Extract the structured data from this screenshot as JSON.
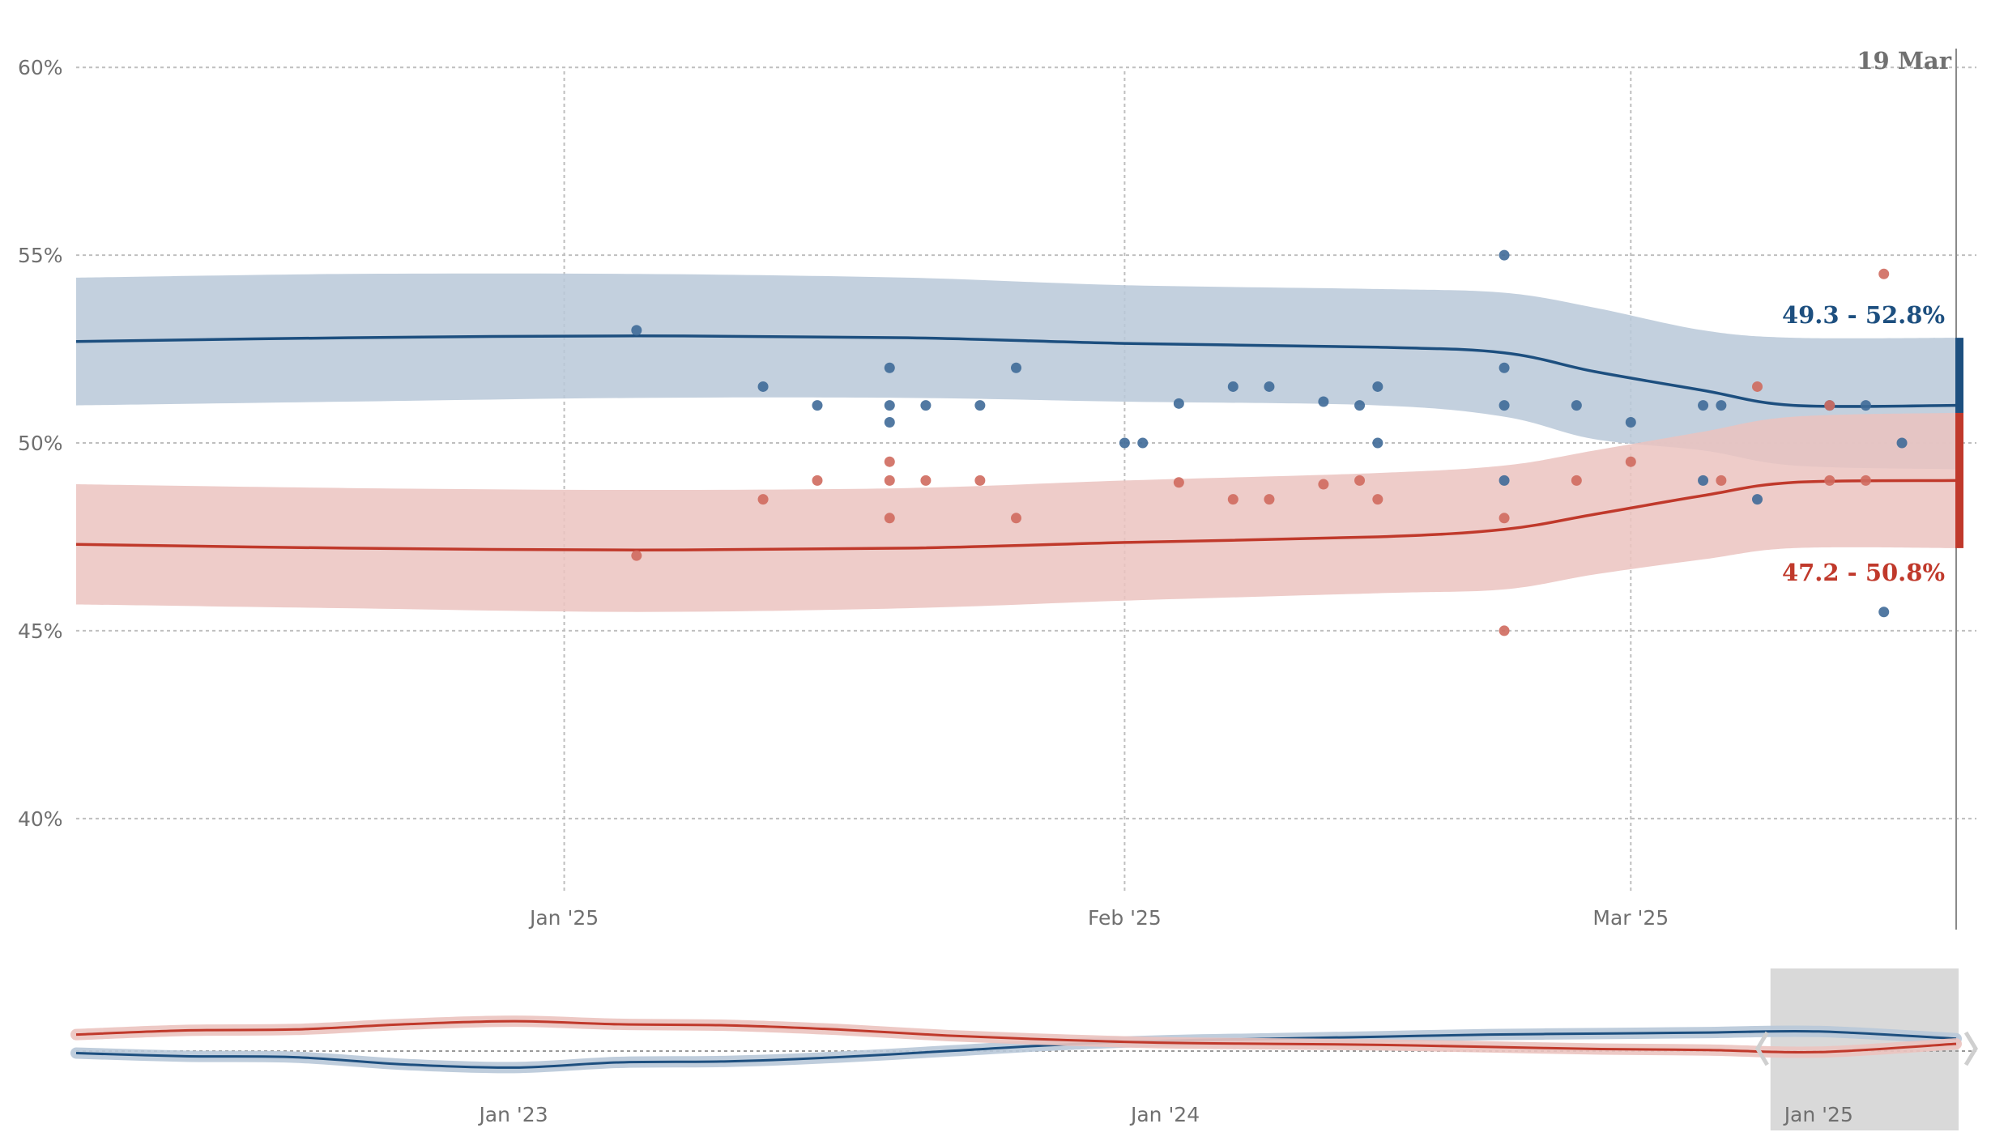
{
  "chart_data": [
    {
      "type": "line",
      "title": "",
      "xlabel": "",
      "ylabel": "",
      "ylim": [
        37,
        60.5
      ],
      "xlim": [
        "2024-12-05",
        "2025-03-19"
      ],
      "grid": true,
      "y_ticks": [
        {
          "value": 60,
          "label": "60%"
        },
        {
          "value": 55,
          "label": "55%"
        },
        {
          "value": 50,
          "label": "50%"
        },
        {
          "value": 45,
          "label": "45%"
        },
        {
          "value": 40,
          "label": "40%"
        }
      ],
      "x_ticks": [
        {
          "date": "2025-01-01",
          "label": "Jan '25"
        },
        {
          "date": "2025-02-01",
          "label": "Feb '25"
        },
        {
          "date": "2025-03-01",
          "label": "Mar '25"
        }
      ],
      "current_date_label": "19 Mar",
      "colors": {
        "blue": "#1d4f7f",
        "blue_band": "#b8c8d8",
        "red": "#c0392b",
        "red_band": "#ebc3bf",
        "grid": "#bfbfbf",
        "dot_mix": "#3b3a5e"
      },
      "series": [
        {
          "color": "blue",
          "range_label": "49.3 - 52.8%",
          "range": [
            49.3,
            52.8
          ],
          "trend": [
            {
              "x": "2024-12-05",
              "y": 52.7,
              "lo": 51.0,
              "hi": 54.4
            },
            {
              "x": "2024-12-20",
              "y": 52.8,
              "lo": 51.1,
              "hi": 54.5
            },
            {
              "x": "2025-01-05",
              "y": 52.85,
              "lo": 51.2,
              "hi": 54.5
            },
            {
              "x": "2025-01-20",
              "y": 52.8,
              "lo": 51.2,
              "hi": 54.4
            },
            {
              "x": "2025-02-01",
              "y": 52.65,
              "lo": 51.1,
              "hi": 54.2
            },
            {
              "x": "2025-02-15",
              "y": 52.55,
              "lo": 51.0,
              "hi": 54.1
            },
            {
              "x": "2025-02-22",
              "y": 52.4,
              "lo": 50.7,
              "hi": 54.0
            },
            {
              "x": "2025-02-27",
              "y": 51.9,
              "lo": 50.1,
              "hi": 53.6
            },
            {
              "x": "2025-03-05",
              "y": 51.4,
              "lo": 49.8,
              "hi": 53.0
            },
            {
              "x": "2025-03-10",
              "y": 51.0,
              "lo": 49.4,
              "hi": 52.8
            },
            {
              "x": "2025-03-19",
              "y": 51.0,
              "lo": 49.3,
              "hi": 52.8
            }
          ],
          "polls": [
            {
              "x": "2025-01-05",
              "y": 53.0
            },
            {
              "x": "2025-01-12",
              "y": 51.5
            },
            {
              "x": "2025-01-15",
              "y": 51.0
            },
            {
              "x": "2025-01-19",
              "y": 52.0
            },
            {
              "x": "2025-01-19",
              "y": 51.0
            },
            {
              "x": "2025-01-19",
              "y": 50.55
            },
            {
              "x": "2025-01-21",
              "y": 51.0
            },
            {
              "x": "2025-01-24",
              "y": 51.0
            },
            {
              "x": "2025-01-26",
              "y": 52.0
            },
            {
              "x": "2025-02-01",
              "y": 50.0
            },
            {
              "x": "2025-02-02",
              "y": 50.0
            },
            {
              "x": "2025-02-04",
              "y": 51.05
            },
            {
              "x": "2025-02-07",
              "y": 51.5
            },
            {
              "x": "2025-02-09",
              "y": 51.5
            },
            {
              "x": "2025-02-12",
              "y": 51.1
            },
            {
              "x": "2025-02-14",
              "y": 51.0
            },
            {
              "x": "2025-02-15",
              "y": 51.5
            },
            {
              "x": "2025-02-15",
              "y": 50.0
            },
            {
              "x": "2025-02-22",
              "y": 55.0
            },
            {
              "x": "2025-02-22",
              "y": 52.0
            },
            {
              "x": "2025-02-22",
              "y": 51.0
            },
            {
              "x": "2025-02-22",
              "y": 49.0
            },
            {
              "x": "2025-02-26",
              "y": 51.0
            },
            {
              "x": "2025-03-01",
              "y": 50.55
            },
            {
              "x": "2025-03-05",
              "y": 51.0
            },
            {
              "x": "2025-03-06",
              "y": 51.0
            },
            {
              "x": "2025-03-05",
              "y": 49.0
            },
            {
              "x": "2025-03-08",
              "y": 48.5
            },
            {
              "x": "2025-03-12",
              "y": 51.0
            },
            {
              "x": "2025-03-14",
              "y": 51.0
            },
            {
              "x": "2025-03-15",
              "y": 45.5
            },
            {
              "x": "2025-03-16",
              "y": 50.0
            }
          ]
        },
        {
          "color": "red",
          "range_label": "47.2 - 50.8%",
          "range": [
            47.2,
            50.8
          ],
          "trend": [
            {
              "x": "2024-12-05",
              "y": 47.3,
              "lo": 45.7,
              "hi": 48.9
            },
            {
              "x": "2024-12-20",
              "y": 47.2,
              "lo": 45.6,
              "hi": 48.8
            },
            {
              "x": "2025-01-05",
              "y": 47.15,
              "lo": 45.5,
              "hi": 48.75
            },
            {
              "x": "2025-01-20",
              "y": 47.2,
              "lo": 45.6,
              "hi": 48.8
            },
            {
              "x": "2025-02-01",
              "y": 47.35,
              "lo": 45.8,
              "hi": 49.0
            },
            {
              "x": "2025-02-15",
              "y": 47.5,
              "lo": 46.0,
              "hi": 49.2
            },
            {
              "x": "2025-02-22",
              "y": 47.7,
              "lo": 46.1,
              "hi": 49.4
            },
            {
              "x": "2025-02-27",
              "y": 48.1,
              "lo": 46.5,
              "hi": 49.8
            },
            {
              "x": "2025-03-05",
              "y": 48.6,
              "lo": 46.9,
              "hi": 50.3
            },
            {
              "x": "2025-03-10",
              "y": 48.95,
              "lo": 47.2,
              "hi": 50.7
            },
            {
              "x": "2025-03-19",
              "y": 49.0,
              "lo": 47.2,
              "hi": 50.8
            }
          ],
          "polls": [
            {
              "x": "2025-01-05",
              "y": 47.0
            },
            {
              "x": "2025-01-12",
              "y": 48.5
            },
            {
              "x": "2025-01-15",
              "y": 49.0
            },
            {
              "x": "2025-01-19",
              "y": 49.5
            },
            {
              "x": "2025-01-19",
              "y": 49.0
            },
            {
              "x": "2025-01-19",
              "y": 48.0
            },
            {
              "x": "2025-01-21",
              "y": 49.0
            },
            {
              "x": "2025-01-24",
              "y": 49.0
            },
            {
              "x": "2025-01-26",
              "y": 48.0
            },
            {
              "x": "2025-02-04",
              "y": 48.95
            },
            {
              "x": "2025-02-07",
              "y": 48.5
            },
            {
              "x": "2025-02-09",
              "y": 48.5
            },
            {
              "x": "2025-02-12",
              "y": 48.9
            },
            {
              "x": "2025-02-14",
              "y": 49.0
            },
            {
              "x": "2025-02-15",
              "y": 48.5
            },
            {
              "x": "2025-02-22",
              "y": 48.0
            },
            {
              "x": "2025-02-22",
              "y": 45.0
            },
            {
              "x": "2025-02-26",
              "y": 49.0
            },
            {
              "x": "2025-03-01",
              "y": 49.5
            },
            {
              "x": "2025-03-06",
              "y": 49.0
            },
            {
              "x": "2025-03-08",
              "y": 51.5
            },
            {
              "x": "2025-03-12",
              "y": 51.0
            },
            {
              "x": "2025-03-12",
              "y": 49.0
            },
            {
              "x": "2025-03-14",
              "y": 49.0
            },
            {
              "x": "2025-03-15",
              "y": 54.5
            }
          ]
        }
      ]
    },
    {
      "type": "line",
      "title": "",
      "xlim": [
        "2022-05-01",
        "2025-03-19"
      ],
      "x_ticks": [
        {
          "date": "2023-01-01",
          "label": "Jan '23"
        },
        {
          "date": "2024-01-01",
          "label": "Jan '24"
        },
        {
          "date": "2025-01-01",
          "label": "Jan '25"
        }
      ],
      "brush_range": [
        "2024-12-05",
        "2025-03-19"
      ],
      "series": [
        {
          "color": "blue",
          "values": [
            {
              "x": "2022-05-01",
              "y": 45.0
            },
            {
              "x": "2022-07-01",
              "y": 44.7
            },
            {
              "x": "2022-09-01",
              "y": 44.6
            },
            {
              "x": "2022-11-01",
              "y": 43.9
            },
            {
              "x": "2023-01-01",
              "y": 43.6
            },
            {
              "x": "2023-03-01",
              "y": 44.1
            },
            {
              "x": "2023-05-01",
              "y": 44.2
            },
            {
              "x": "2023-07-01",
              "y": 44.6
            },
            {
              "x": "2023-09-01",
              "y": 45.2
            },
            {
              "x": "2023-11-01",
              "y": 45.8
            },
            {
              "x": "2024-01-01",
              "y": 46.2
            },
            {
              "x": "2024-03-01",
              "y": 46.4
            },
            {
              "x": "2024-05-01",
              "y": 46.6
            },
            {
              "x": "2024-07-01",
              "y": 46.8
            },
            {
              "x": "2024-09-01",
              "y": 46.9
            },
            {
              "x": "2024-11-01",
              "y": 47.0
            },
            {
              "x": "2025-01-01",
              "y": 47.1
            },
            {
              "x": "2025-03-19",
              "y": 46.4
            }
          ]
        },
        {
          "color": "red",
          "values": [
            {
              "x": "2022-05-01",
              "y": 46.8
            },
            {
              "x": "2022-07-01",
              "y": 47.2
            },
            {
              "x": "2022-09-01",
              "y": 47.3
            },
            {
              "x": "2022-11-01",
              "y": 47.8
            },
            {
              "x": "2023-01-01",
              "y": 48.1
            },
            {
              "x": "2023-03-01",
              "y": 47.8
            },
            {
              "x": "2023-05-01",
              "y": 47.7
            },
            {
              "x": "2023-07-01",
              "y": 47.3
            },
            {
              "x": "2023-09-01",
              "y": 46.7
            },
            {
              "x": "2023-11-01",
              "y": 46.3
            },
            {
              "x": "2024-01-01",
              "y": 46.0
            },
            {
              "x": "2024-03-01",
              "y": 45.9
            },
            {
              "x": "2024-05-01",
              "y": 45.8
            },
            {
              "x": "2024-07-01",
              "y": 45.6
            },
            {
              "x": "2024-09-01",
              "y": 45.4
            },
            {
              "x": "2024-11-01",
              "y": 45.3
            },
            {
              "x": "2025-01-01",
              "y": 45.1
            },
            {
              "x": "2025-03-19",
              "y": 45.9
            }
          ]
        }
      ]
    }
  ]
}
